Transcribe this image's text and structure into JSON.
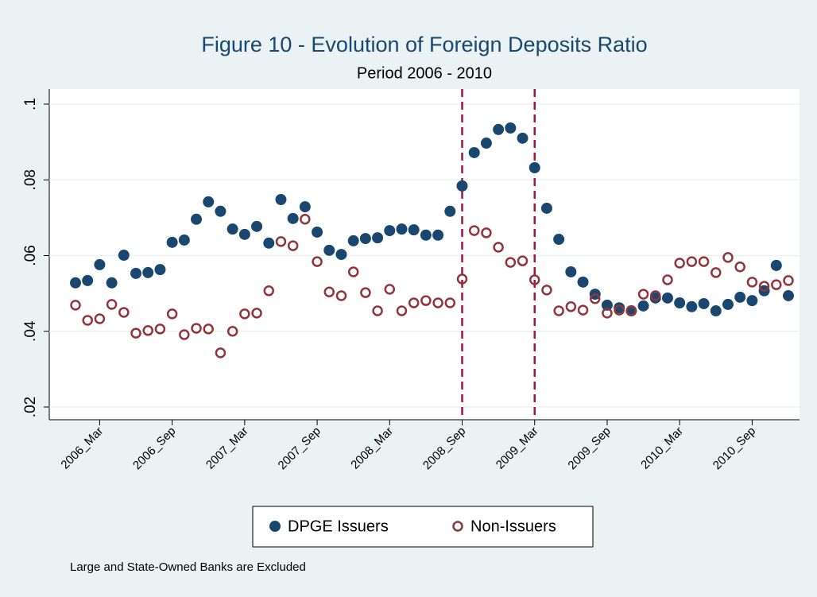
{
  "chart_data": {
    "type": "scatter",
    "title": "Figure 10 - Evolution of Foreign Deposits Ratio",
    "subtitle": "Period 2006 - 2010",
    "note": "Large and State-Owned Banks are Excluded",
    "categories": [
      null,
      null,
      "2006_Mar",
      null,
      null,
      null,
      null,
      null,
      "2006_Sep",
      null,
      null,
      null,
      null,
      null,
      "2007_Mar",
      null,
      null,
      null,
      null,
      null,
      "2007_Sep",
      null,
      null,
      null,
      null,
      null,
      "2008_Mar",
      null,
      null,
      null,
      null,
      null,
      "2008_Sep",
      null,
      null,
      null,
      null,
      null,
      "2009_Mar",
      null,
      null,
      null,
      null,
      null,
      "2009_Sep",
      null,
      null,
      null,
      null,
      null,
      "2010_Mar",
      null,
      null,
      null,
      null,
      null,
      "2010_Sep",
      null,
      null,
      null
    ],
    "series": [
      {
        "name": "DPGE Issuers",
        "color": "#1a476f",
        "marker": "filled",
        "values": [
          0.0528,
          0.0534,
          0.0576,
          0.0528,
          0.0601,
          0.0553,
          0.0555,
          0.0563,
          0.0635,
          0.0641,
          0.0696,
          0.0742,
          0.0717,
          0.067,
          0.0656,
          0.0677,
          0.0633,
          0.0748,
          0.0698,
          0.0729,
          0.0662,
          0.0614,
          0.0603,
          0.0639,
          0.0645,
          0.0647,
          0.0666,
          0.067,
          0.0668,
          0.0654,
          0.0654,
          0.0717,
          0.0784,
          0.0872,
          0.0897,
          0.0933,
          0.0937,
          0.091,
          0.0832,
          0.0725,
          0.0643,
          0.0557,
          0.053,
          0.0498,
          0.0469,
          0.0462,
          0.0454,
          0.0467,
          0.0488,
          0.0488,
          0.0475,
          0.0465,
          0.0473,
          0.0454,
          0.0471,
          0.049,
          0.0481,
          0.0507,
          0.0574,
          0.0494
        ]
      },
      {
        "name": "Non-Issuers",
        "color": "#90353b",
        "marker": "hollow",
        "values": [
          0.0469,
          0.0429,
          0.0433,
          0.0471,
          0.045,
          0.0395,
          0.0402,
          0.0406,
          0.0446,
          0.0391,
          0.0408,
          0.0406,
          0.0343,
          0.04,
          0.0446,
          0.0448,
          0.0507,
          0.0637,
          0.0626,
          0.0696,
          0.0584,
          0.0504,
          0.0494,
          0.0557,
          0.0502,
          0.0454,
          0.0511,
          0.0454,
          0.0475,
          0.0481,
          0.0475,
          0.0475,
          0.0538,
          0.0666,
          0.066,
          0.0622,
          0.0582,
          0.0586,
          0.0536,
          0.0509,
          0.0454,
          0.0465,
          0.0456,
          0.0486,
          0.0448,
          0.0456,
          0.0454,
          0.0498,
          0.0494,
          0.0536,
          0.058,
          0.0584,
          0.0584,
          0.0555,
          0.0595,
          0.057,
          0.053,
          0.0519,
          0.0523,
          0.0534
        ]
      }
    ],
    "reference_lines": [
      "2008_Sep",
      "2009_Mar"
    ],
    "reference_line_color": "#a0153e",
    "ylim": [
      0.02,
      0.1
    ],
    "yticks": [
      {
        "value": 0.02,
        "label": ".02"
      },
      {
        "value": 0.04,
        "label": ".04"
      },
      {
        "value": 0.06,
        "label": ".06"
      },
      {
        "value": 0.08,
        "label": ".08"
      },
      {
        "value": 0.1,
        "label": ".1"
      }
    ],
    "grid": true,
    "legend": "bottom"
  }
}
